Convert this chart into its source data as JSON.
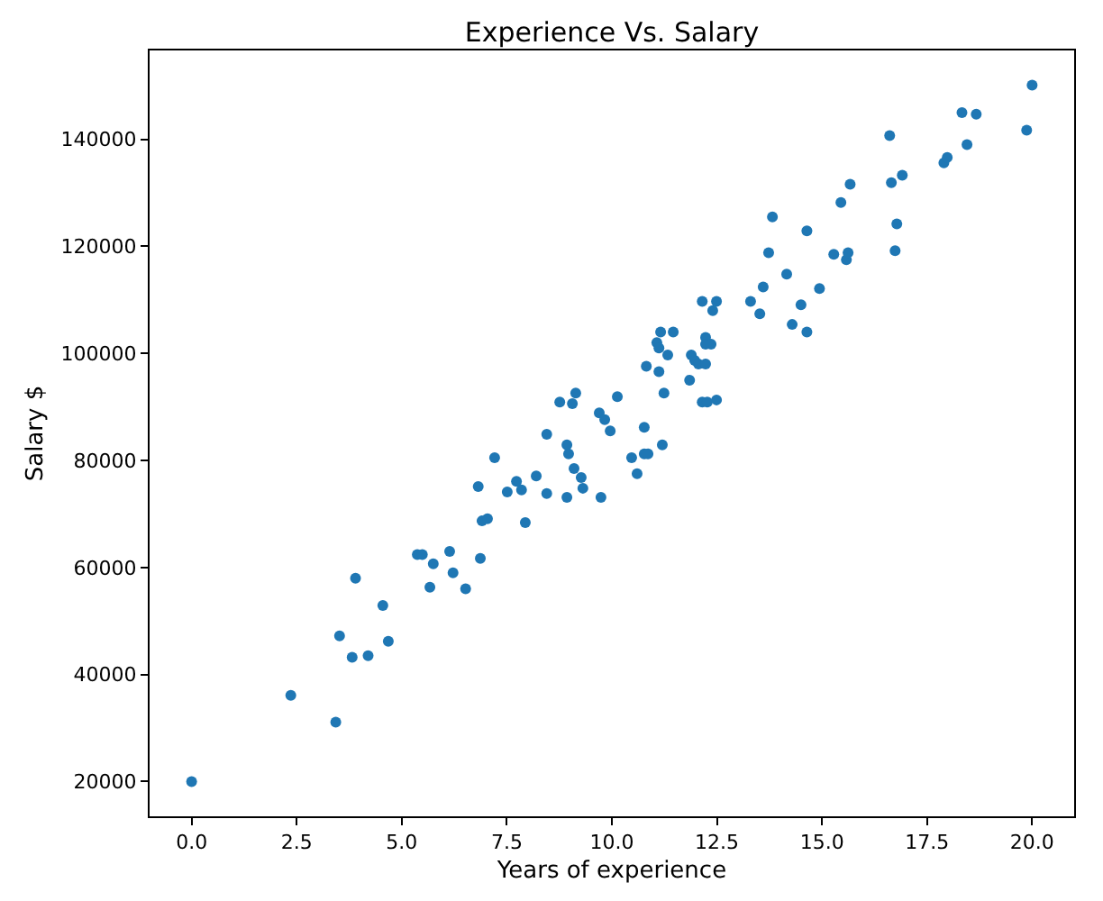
{
  "chart_data": {
    "type": "scatter",
    "title": "Experience Vs. Salary",
    "xlabel": "Years of experience",
    "ylabel": "Salary $",
    "xlim": [
      -1,
      21
    ],
    "xticks": [
      {
        "value": 0,
        "label": "0.0"
      },
      {
        "value": 2.5,
        "label": "2.5"
      },
      {
        "value": 5,
        "label": "5.0"
      },
      {
        "value": 7.5,
        "label": "7.5"
      },
      {
        "value": 10,
        "label": "10.0"
      },
      {
        "value": 12.5,
        "label": "12.5"
      },
      {
        "value": 15,
        "label": "15.0"
      },
      {
        "value": 17.5,
        "label": "17.5"
      },
      {
        "value": 20,
        "label": "20.0"
      }
    ],
    "ylim": [
      13500,
      156600
    ],
    "yticks": [
      20000,
      40000,
      60000,
      80000,
      100000,
      120000,
      140000
    ],
    "marker": "circle",
    "series": [
      {
        "color": "#1f77b4",
        "x": [
          0,
          2.36,
          3.43,
          3.52,
          3.82,
          4.2,
          3.9,
          4.55,
          4.68,
          5.67,
          5.37,
          5.49,
          5.75,
          6.14,
          6.22,
          6.52,
          6.87,
          6.82,
          6.91,
          7.04,
          7.21,
          7.51,
          7.94,
          7.73,
          7.85,
          8.2,
          8.45,
          8.45,
          8.76,
          9.06,
          9.14,
          8.93,
          8.97,
          9.1,
          9.27,
          9.31,
          8.93,
          9.74,
          9.7,
          9.83,
          9.96,
          10.13,
          10.47,
          10.6,
          10.77,
          10.86,
          10.77,
          11.2,
          10.82,
          11.12,
          11.24,
          11.07,
          11.12,
          11.16,
          11.46,
          11.33,
          11.85,
          11.89,
          11.97,
          12.06,
          12.23,
          12.23,
          12.23,
          12.36,
          12.15,
          12.49,
          12.4,
          12.15,
          12.27,
          12.49,
          13.3,
          13.82,
          13.73,
          13.6,
          13.52,
          14.16,
          14.5,
          14.29,
          14.64,
          14.64,
          14.94,
          15.28,
          15.58,
          15.62,
          15.45,
          15.67,
          16.65,
          16.91,
          16.78,
          16.74,
          16.61,
          18.33,
          18.67,
          18.45,
          17.9,
          17.98,
          20.0,
          19.87
        ],
        "values": [
          20000,
          36100,
          31100,
          47200,
          43200,
          43500,
          58000,
          52900,
          46200,
          56300,
          62400,
          62400,
          60700,
          63000,
          59000,
          56000,
          61700,
          75100,
          68700,
          69100,
          80500,
          74100,
          68400,
          76100,
          74500,
          77100,
          73800,
          84900,
          90900,
          90600,
          92600,
          82900,
          81200,
          78500,
          76800,
          74800,
          73100,
          73100,
          88900,
          87600,
          85500,
          91900,
          80500,
          77500,
          81200,
          81200,
          86200,
          82900,
          97600,
          96600,
          92600,
          102000,
          101000,
          104000,
          104000,
          99700,
          95000,
          99700,
          98700,
          98000,
          98000,
          103000,
          101700,
          101700,
          109700,
          109700,
          108000,
          90900,
          90900,
          91300,
          109700,
          125500,
          118800,
          112400,
          107400,
          114800,
          109100,
          105400,
          104000,
          122900,
          112100,
          118500,
          117500,
          118800,
          128200,
          131600,
          131900,
          133300,
          124200,
          119200,
          140700,
          145000,
          144700,
          139000,
          135600,
          136600,
          150100,
          141700
        ]
      }
    ]
  }
}
